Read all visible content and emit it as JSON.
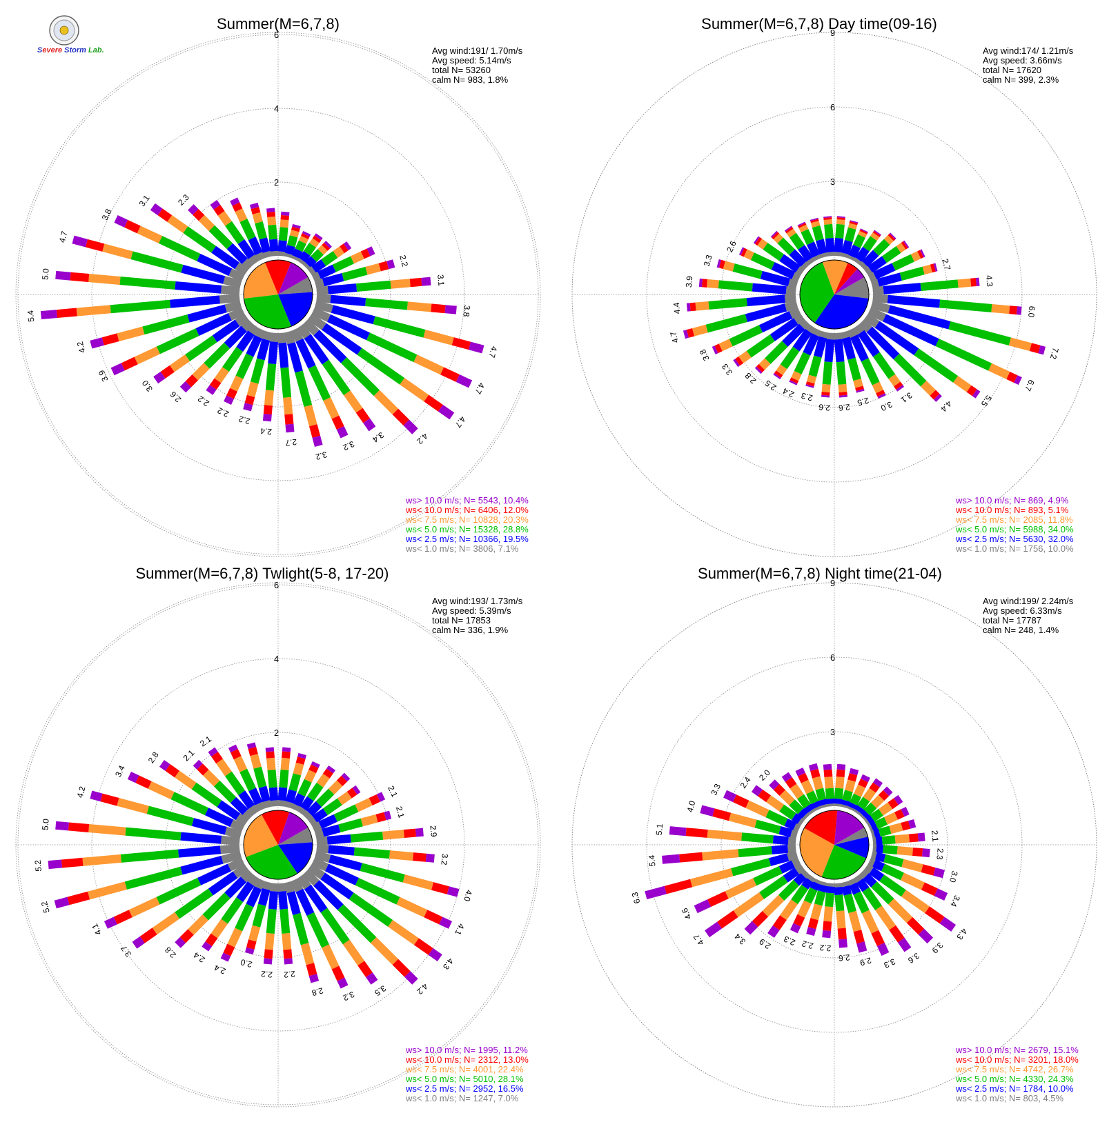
{
  "logo": {
    "text_parts": [
      "S",
      "evere",
      " ",
      "S",
      "torm",
      " ",
      "Lab."
    ],
    "colors": [
      "#2030c0",
      "#e02020",
      "#000000",
      "#2030c0",
      "#2030c0",
      "#000000",
      "#20a020"
    ]
  },
  "colors": {
    "bins": [
      "#808080",
      "#0000ff",
      "#00c000",
      "#ff9933",
      "#ff0000",
      "#9900cc"
    ],
    "grid": "#888888"
  },
  "chart_data": [
    {
      "type": "windrose",
      "title": "Summer(M=6,7,8)",
      "stats": [
        "Avg wind:191/ 1.70m/s",
        "Avg speed: 5.14m/s",
        "total N=      53260",
        "calm N=    983,   1.8%"
      ],
      "ring_step": 2,
      "rings": [
        "2",
        "4",
        "6"
      ],
      "legend": [
        {
          "label": "ws> 10.0 m/s; N=  5543, 10.4%",
          "color": "#9900cc"
        },
        {
          "label": "ws< 10.0 m/s; N=  6406, 12.0%",
          "color": "#ff0000"
        },
        {
          "label": "ws<  7.5 m/s; N= 10828, 20.3%",
          "color": "#ff9933"
        },
        {
          "label": "ws<  5.0 m/s; N= 15328, 28.8%",
          "color": "#00c000"
        },
        {
          "label": "ws<  2.5 m/s; N= 10366, 19.5%",
          "color": "#0000ff"
        },
        {
          "label": "ws<  1.0 m/s; N=  3806,  7.1%",
          "color": "#808080"
        }
      ],
      "pie": [
        7.1,
        19.5,
        28.8,
        20.3,
        12.0,
        10.4
      ],
      "pie_share": [
        7.1,
        19.5,
        28.8,
        20.3,
        12.0,
        10.4
      ],
      "directions_deg": [
        5,
        15,
        25,
        35,
        45,
        55,
        65,
        75,
        85,
        95,
        105,
        115,
        125,
        135,
        145,
        155,
        165,
        175,
        185,
        195,
        205,
        215,
        225,
        235,
        245,
        255,
        265,
        275,
        285,
        295,
        305,
        315,
        325,
        335,
        345,
        355
      ],
      "totals": [
        1.2,
        0.9,
        0.8,
        0.9,
        0.9,
        1.3,
        1.8,
        2.2,
        3.1,
        3.8,
        4.7,
        4.7,
        4.7,
        4.2,
        3.4,
        3.2,
        3.2,
        2.7,
        2.4,
        2.2,
        2.2,
        2.2,
        2.6,
        3.0,
        3.9,
        4.2,
        5.4,
        5.0,
        4.7,
        3.8,
        3.1,
        2.3,
        2.0,
        1.8,
        1.5,
        1.3
      ],
      "total_labels": [
        "",
        "",
        "",
        "",
        "",
        "",
        "",
        "2.2",
        "3.1",
        "3.8",
        "4.7",
        "4.7",
        "4.7",
        "4.2",
        "3.4",
        "3.2",
        "3.2",
        "2.7",
        "2.4",
        "2.2",
        "2.2",
        "2.2",
        "2.6",
        "3.0",
        "3.9",
        "4.2",
        "5.4",
        "5.0",
        "4.7",
        "3.8",
        "3.1",
        "2.3",
        "",
        "",
        "",
        ""
      ],
      "composition": [
        0.1,
        0.25,
        0.3,
        0.17,
        0.1,
        0.08
      ]
    },
    {
      "type": "windrose",
      "title": "Summer(M=6,7,8) Day time(09-16)",
      "stats": [
        "Avg wind:174/ 1.21m/s",
        "Avg speed: 3.66m/s",
        "total N=      17620",
        "calm N=    399,   2.3%"
      ],
      "ring_step": 3,
      "rings": [
        "3",
        "6",
        "9"
      ],
      "legend": [
        {
          "label": "ws> 10.0 m/s; N=   869,  4.9%",
          "color": "#9900cc"
        },
        {
          "label": "ws< 10.0 m/s; N=   893,  5.1%",
          "color": "#ff0000"
        },
        {
          "label": "ws<  7.5 m/s; N=  2085, 11.8%",
          "color": "#ff9933"
        },
        {
          "label": "ws<  5.0 m/s; N=  5988, 34.0%",
          "color": "#00c000"
        },
        {
          "label": "ws<  2.5 m/s; N=  5630, 32.0%",
          "color": "#0000ff"
        },
        {
          "label": "ws<  1.0 m/s; N=  1756, 10.0%",
          "color": "#808080"
        }
      ],
      "pie": [
        10.0,
        32.0,
        34.0,
        11.8,
        5.1,
        4.9
      ],
      "directions_deg": [
        5,
        15,
        25,
        35,
        45,
        55,
        65,
        75,
        85,
        95,
        105,
        115,
        125,
        135,
        145,
        155,
        165,
        175,
        185,
        195,
        205,
        215,
        225,
        235,
        245,
        255,
        265,
        275,
        285,
        295,
        305,
        315,
        325,
        335,
        345,
        355
      ],
      "totals": [
        1.6,
        1.5,
        1.3,
        1.5,
        1.8,
        2.0,
        2.4,
        2.7,
        4.3,
        6.0,
        7.2,
        6.7,
        5.5,
        4.4,
        3.1,
        3.0,
        2.5,
        2.6,
        2.6,
        2.3,
        2.4,
        2.5,
        2.8,
        3.3,
        3.8,
        4.7,
        4.4,
        3.9,
        3.3,
        2.6,
        2.3,
        1.9,
        1.7,
        1.6,
        1.6,
        1.6
      ],
      "total_labels": [
        "",
        "",
        "",
        "",
        "",
        "",
        "",
        "2.7",
        "4.3",
        "6.0",
        "7.2",
        "6.7",
        "5.5",
        "4.4",
        "3.1",
        "3.0",
        "2.5",
        "2.6",
        "2.6",
        "2.3",
        "2.4",
        "2.5",
        "2.8",
        "3.3",
        "3.8",
        "4.7",
        "4.4",
        "3.9",
        "3.3",
        "2.6",
        "",
        "",
        "",
        "",
        "",
        ""
      ],
      "composition": [
        0.1,
        0.35,
        0.35,
        0.12,
        0.05,
        0.03
      ]
    },
    {
      "type": "windrose",
      "title": "Summer(M=6,7,8) Twlight(5-8, 17-20)",
      "stats": [
        "Avg wind:193/ 1.73m/s",
        "Avg speed: 5.39m/s",
        "total N=      17853",
        "calm N=    336,   1.9%"
      ],
      "ring_step": 2,
      "rings": [
        "2",
        "4",
        "6"
      ],
      "legend": [
        {
          "label": "ws> 10.0 m/s; N=  1995, 11.2%",
          "color": "#9900cc"
        },
        {
          "label": "ws< 10.0 m/s; N=  2312, 13.0%",
          "color": "#ff0000"
        },
        {
          "label": "ws<  7.5 m/s; N=  4001, 22.4%",
          "color": "#ff9933"
        },
        {
          "label": "ws<  5.0 m/s; N=  5010, 28.1%",
          "color": "#00c000"
        },
        {
          "label": "ws<  2.5 m/s; N=  2952, 16.5%",
          "color": "#0000ff"
        },
        {
          "label": "ws<  1.0 m/s; N=  1247,  7.0%",
          "color": "#808080"
        }
      ],
      "pie": [
        7.0,
        16.5,
        28.1,
        22.4,
        13.0,
        11.2
      ],
      "directions_deg": [
        5,
        15,
        25,
        35,
        45,
        55,
        65,
        75,
        85,
        95,
        105,
        115,
        125,
        135,
        145,
        155,
        165,
        175,
        185,
        195,
        205,
        215,
        225,
        235,
        245,
        255,
        265,
        275,
        285,
        295,
        305,
        315,
        325,
        335,
        345,
        355
      ],
      "totals": [
        1.6,
        1.5,
        1.4,
        1.5,
        1.6,
        1.6,
        2.1,
        2.1,
        2.9,
        3.2,
        4.0,
        4.1,
        4.3,
        4.2,
        3.5,
        3.2,
        2.8,
        2.2,
        2.2,
        2.0,
        2.4,
        2.4,
        2.8,
        3.7,
        4.1,
        5.2,
        5.2,
        5.0,
        4.2,
        3.4,
        2.8,
        2.1,
        2.1,
        1.9,
        1.8,
        1.6
      ],
      "total_labels": [
        "",
        "",
        "",
        "",
        "",
        "",
        "2.1",
        "2.1",
        "2.9",
        "3.2",
        "4.0",
        "4.1",
        "4.3",
        "4.2",
        "3.5",
        "3.2",
        "2.8",
        "2.2",
        "2.2",
        "2.0",
        "2.4",
        "2.4",
        "2.8",
        "3.7",
        "4.1",
        "5.2",
        "5.2",
        "5.0",
        "4.2",
        "3.4",
        "2.8",
        "2.1",
        "2.1",
        "",
        "",
        ""
      ],
      "composition": [
        0.1,
        0.22,
        0.3,
        0.2,
        0.11,
        0.07
      ]
    },
    {
      "type": "windrose",
      "title": "Summer(M=6,7,8) Night time(21-04)",
      "stats": [
        "Avg wind:199/ 2.24m/s",
        "Avg speed: 6.33m/s",
        "total N=      17787",
        "calm N=    248,   1.4%"
      ],
      "ring_step": 3,
      "rings": [
        "3",
        "6",
        "9"
      ],
      "legend": [
        {
          "label": "ws> 10.0 m/s; N=  2679, 15.1%",
          "color": "#9900cc"
        },
        {
          "label": "ws< 10.0 m/s; N=  3201, 18.0%",
          "color": "#ff0000"
        },
        {
          "label": "ws<  7.5 m/s; N=  4742, 26.7%",
          "color": "#ff9933"
        },
        {
          "label": "ws<  5.0 m/s; N=  4330, 24.3%",
          "color": "#00c000"
        },
        {
          "label": "ws<  2.5 m/s; N=  1784, 10.0%",
          "color": "#0000ff"
        },
        {
          "label": "ws<  1.0 m/s; N=   803,  4.5%",
          "color": "#808080"
        }
      ],
      "pie": [
        4.5,
        10.0,
        24.3,
        26.7,
        18.0,
        15.1
      ],
      "directions_deg": [
        5,
        15,
        25,
        35,
        45,
        55,
        65,
        75,
        85,
        95,
        105,
        115,
        125,
        135,
        145,
        155,
        165,
        175,
        185,
        195,
        205,
        215,
        225,
        235,
        245,
        255,
        265,
        275,
        285,
        295,
        305,
        315,
        325,
        335,
        345,
        355
      ],
      "totals": [
        1.7,
        1.6,
        1.5,
        1.6,
        1.6,
        1.7,
        1.7,
        1.8,
        2.1,
        2.3,
        3.0,
        3.4,
        4.3,
        3.9,
        3.6,
        3.3,
        2.9,
        2.6,
        2.2,
        2.2,
        2.3,
        2.9,
        3.4,
        4.7,
        4.6,
        6.3,
        5.4,
        5.1,
        4.0,
        3.3,
        2.4,
        2.0,
        1.9,
        1.8,
        1.8,
        1.7
      ],
      "total_labels": [
        "",
        "",
        "",
        "",
        "",
        "",
        "",
        "",
        "2.1",
        "2.3",
        "3.0",
        "3.4",
        "4.3",
        "3.9",
        "3.6",
        "3.3",
        "2.9",
        "2.6",
        "2.2",
        "2.2",
        "2.3",
        "2.9",
        "3.4",
        "4.7",
        "4.6",
        "6.3",
        "5.4",
        "5.1",
        "4.0",
        "3.3",
        "2.4",
        "2.0",
        "",
        "",
        "",
        ""
      ],
      "composition": [
        0.06,
        0.12,
        0.25,
        0.27,
        0.17,
        0.13
      ]
    }
  ]
}
